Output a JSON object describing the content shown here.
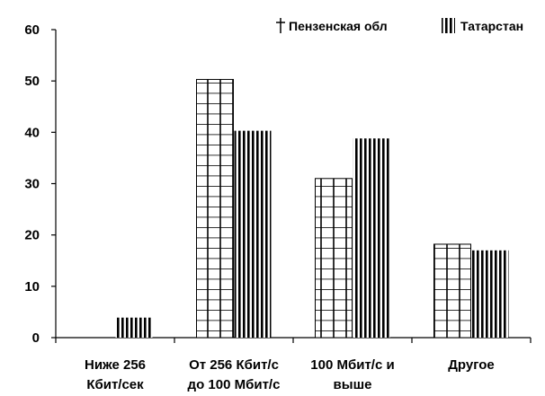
{
  "chart_data": {
    "type": "bar",
    "categories": [
      [
        "Ниже 256",
        "Кбит/сек"
      ],
      [
        "От 256 Кбит/с",
        "до 100 Мбит/с"
      ],
      [
        "100 Мбит/с и",
        "выше"
      ],
      [
        "Другое"
      ]
    ],
    "series": [
      {
        "name": "Пензенская обл",
        "values": [
          0,
          50.3,
          31,
          18.2
        ],
        "pattern": "grid"
      },
      {
        "name": "Татарстан",
        "values": [
          3.9,
          40.3,
          38.8,
          17
        ],
        "pattern": "vertical"
      }
    ],
    "ylim": [
      0,
      60
    ],
    "yticks": [
      0,
      10,
      20,
      30,
      40,
      50,
      60
    ],
    "legend_position": "top-right",
    "colors": {
      "stroke": "#000000",
      "background": "#ffffff"
    }
  }
}
